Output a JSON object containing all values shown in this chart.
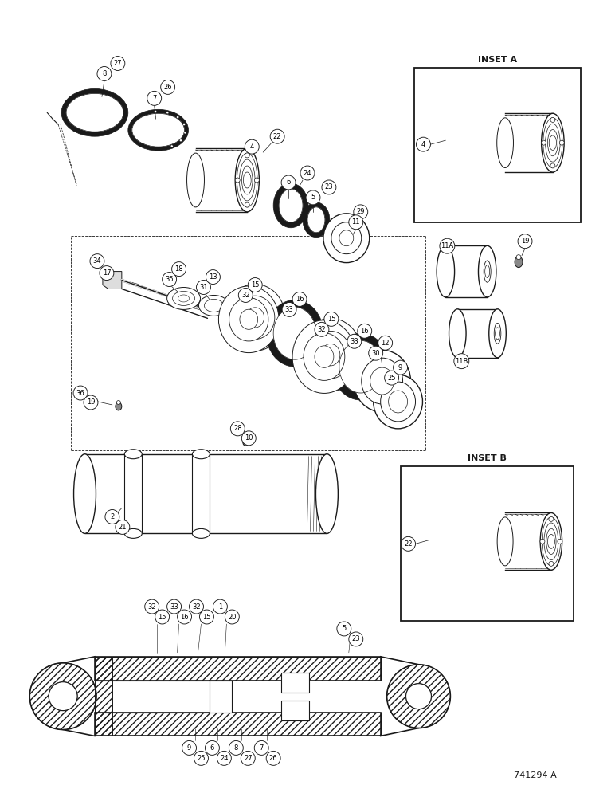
{
  "background_color": "#ffffff",
  "inset_a_label": "INSET A",
  "inset_b_label": "INSET B",
  "footer_text": "741294 A",
  "fig_width": 7.72,
  "fig_height": 10.0,
  "dpi": 100,
  "line_color": "#1a1a1a"
}
